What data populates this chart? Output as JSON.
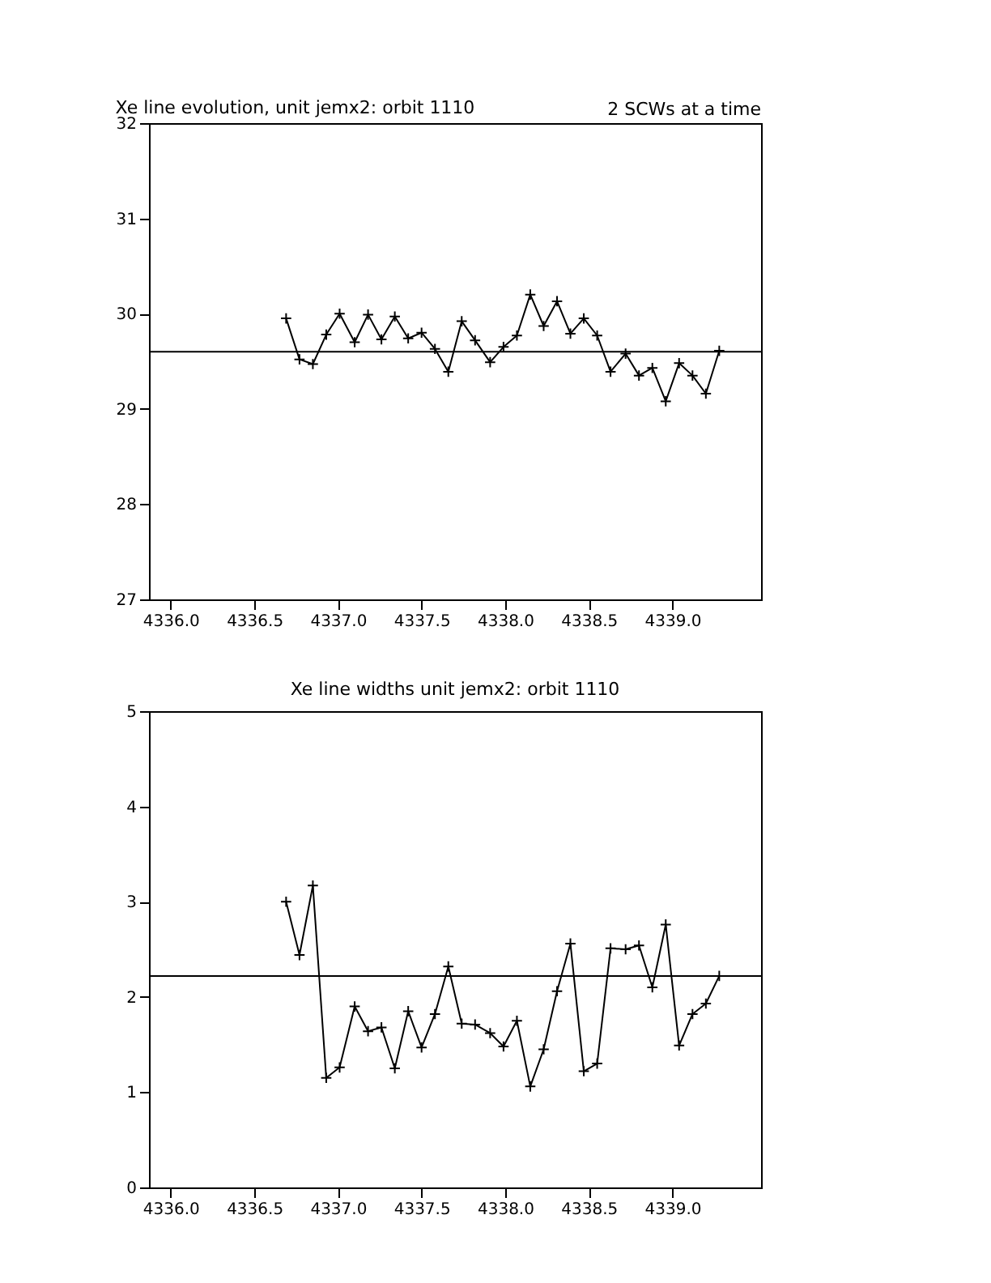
{
  "chart_data": [
    {
      "type": "line",
      "title": "Xe line evolution, unit jemx2: orbit 1110",
      "annotations": [
        "2 SCWs at a time"
      ],
      "x": [
        4336.69,
        4336.77,
        4336.85,
        4336.93,
        4337.01,
        4337.1,
        4337.18,
        4337.26,
        4337.34,
        4337.42,
        4337.5,
        4337.58,
        4337.66,
        4337.74,
        4337.82,
        4337.91,
        4337.99,
        4338.07,
        4338.15,
        4338.23,
        4338.31,
        4338.39,
        4338.47,
        4338.55,
        4338.63,
        4338.72,
        4338.8,
        4338.88,
        4338.96,
        4339.04,
        4339.12,
        4339.2,
        4339.28
      ],
      "series": [
        {
          "color": "#000000",
          "values": [
            29.95,
            29.52,
            29.47,
            29.78,
            30.0,
            29.7,
            29.99,
            29.73,
            29.97,
            29.74,
            29.8,
            29.63,
            29.39,
            29.92,
            29.72,
            29.49,
            29.65,
            29.77,
            30.2,
            29.87,
            30.13,
            29.79,
            29.95,
            29.77,
            29.39,
            29.58,
            29.35,
            29.43,
            29.08,
            29.48,
            29.35,
            29.16,
            29.61
          ]
        }
      ],
      "ref_lines": [
        {
          "axis": "y",
          "value": 29.6,
          "color": "#000000"
        }
      ],
      "xlim": [
        4335.87,
        4339.53
      ],
      "xticks": [
        {
          "value": 4336,
          "label": "4336.0"
        },
        {
          "value": 4336.5,
          "label": "4336.5"
        },
        {
          "value": 4337,
          "label": "4337.0"
        },
        {
          "value": 4337.5,
          "label": "4337.5"
        },
        {
          "value": 4338,
          "label": "4338.0"
        },
        {
          "value": 4338.5,
          "label": "4338.5"
        },
        {
          "value": 4339,
          "label": "4339.0"
        }
      ],
      "ylim": [
        27,
        32
      ],
      "yticks": [
        27,
        28,
        29,
        30,
        31,
        32
      ],
      "grid": false,
      "marker": "cross",
      "line_style": "solid"
    },
    {
      "type": "line",
      "title": "Xe line widths unit jemx2: orbit 1110",
      "x": [
        4336.69,
        4336.77,
        4336.85,
        4336.93,
        4337.01,
        4337.1,
        4337.18,
        4337.26,
        4337.34,
        4337.42,
        4337.5,
        4337.58,
        4337.66,
        4337.74,
        4337.82,
        4337.91,
        4337.99,
        4338.07,
        4338.15,
        4338.23,
        4338.31,
        4338.39,
        4338.47,
        4338.55,
        4338.63,
        4338.72,
        4338.8,
        4338.88,
        4338.96,
        4339.04,
        4339.12,
        4339.2,
        4339.28
      ],
      "series": [
        {
          "color": "#000000",
          "values": [
            3.0,
            2.44,
            3.17,
            1.15,
            1.26,
            1.9,
            1.64,
            1.68,
            1.25,
            1.85,
            1.47,
            1.82,
            2.32,
            1.72,
            1.71,
            1.62,
            1.48,
            1.75,
            1.06,
            1.45,
            2.06,
            2.56,
            1.22,
            1.3,
            2.51,
            2.5,
            2.54,
            2.1,
            2.76,
            1.49,
            1.82,
            1.93,
            2.22
          ]
        }
      ],
      "ref_lines": [
        {
          "axis": "y",
          "value": 2.22,
          "color": "#000000"
        }
      ],
      "xlim": [
        4335.87,
        4339.53
      ],
      "xticks": [
        {
          "value": 4336,
          "label": "4336.0"
        },
        {
          "value": 4336.5,
          "label": "4336.5"
        },
        {
          "value": 4337,
          "label": "4337.0"
        },
        {
          "value": 4337.5,
          "label": "4337.5"
        },
        {
          "value": 4338,
          "label": "4338.0"
        },
        {
          "value": 4338.5,
          "label": "4338.5"
        },
        {
          "value": 4339,
          "label": "4339.0"
        }
      ],
      "ylim": [
        0,
        5
      ],
      "yticks": [
        0,
        1,
        2,
        3,
        4,
        5
      ],
      "grid": false,
      "marker": "cross",
      "line_style": "solid"
    }
  ]
}
